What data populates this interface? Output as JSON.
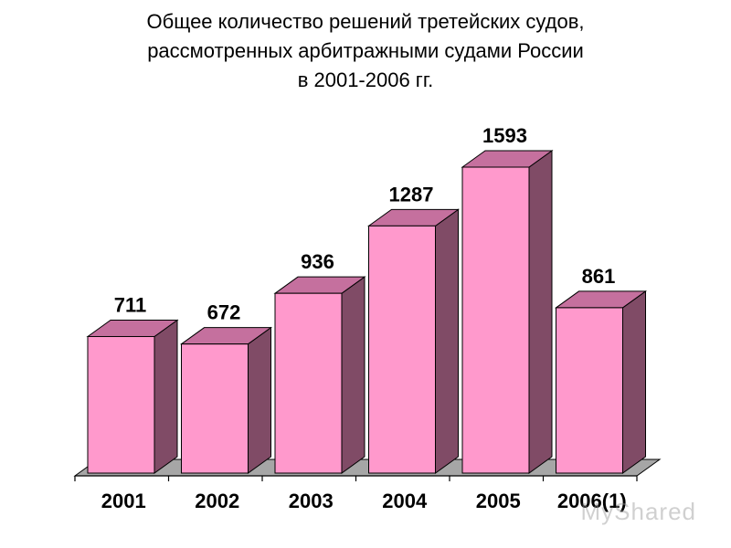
{
  "title_lines": [
    "Общее количество решений третейских судов,",
    "рассмотренных арбитражными судами России",
    "в 2001-2006 гг."
  ],
  "watermark": "MyShared",
  "colors": {
    "bar_front": "#ff99cc",
    "bar_top": "#c5709e",
    "bar_side": "#804b66",
    "floor": "#a6a6a6",
    "axis": "#000000",
    "text": "#000000"
  },
  "chart_data": {
    "type": "bar",
    "style": "3d",
    "title": "Общее количество решений третейских судов, рассмотренных арбитражными судами России в 2001-2006 гг.",
    "categories": [
      "2001",
      "2002",
      "2003",
      "2004",
      "2005",
      "2006(1)"
    ],
    "values": [
      711,
      672,
      936,
      1287,
      1593,
      861
    ],
    "data_labels": [
      "711",
      "672",
      "936",
      "1287",
      "1593",
      "861"
    ],
    "xlabel": "",
    "ylabel": "",
    "ylim": [
      0,
      1593
    ],
    "grid": false,
    "legend": "none"
  }
}
